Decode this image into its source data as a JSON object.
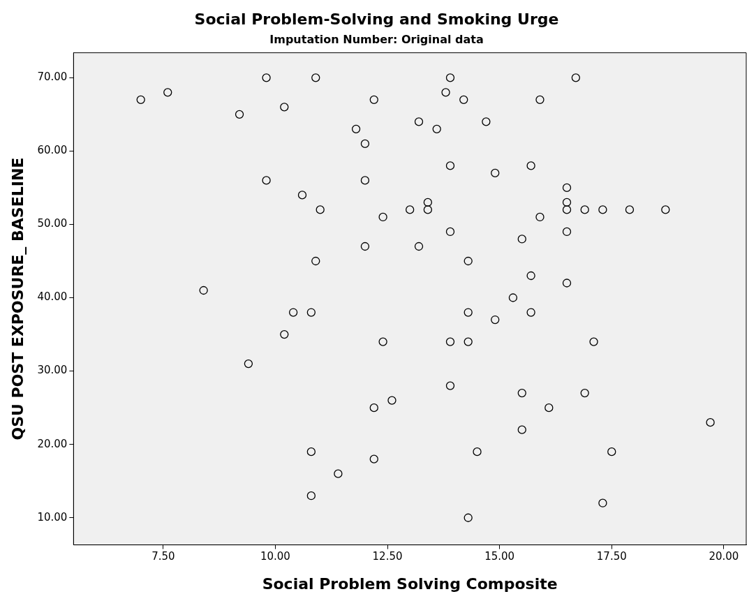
{
  "chart_data": {
    "type": "scatter",
    "title": "Social Problem-Solving and Smoking Urge",
    "subtitle": "Imputation Number: Original data",
    "xlabel": "Social Problem Solving Composite",
    "ylabel": "QSU POST EXPOSURE_ BASELINE",
    "marker": "circle",
    "legend": false,
    "grid": false,
    "xlim": [
      5.5,
      20.5
    ],
    "ylim": [
      6.3,
      73.4
    ],
    "xticks": [
      {
        "value": 7.5,
        "label": "7.50"
      },
      {
        "value": 10,
        "label": "10.00"
      },
      {
        "value": 12.5,
        "label": "12.50"
      },
      {
        "value": 15,
        "label": "15.00"
      },
      {
        "value": 17.5,
        "label": "17.50"
      },
      {
        "value": 20,
        "label": "20.00"
      }
    ],
    "yticks": [
      {
        "value": 10,
        "label": "10.00"
      },
      {
        "value": 20,
        "label": "20.00"
      },
      {
        "value": 30,
        "label": "30.00"
      },
      {
        "value": 40,
        "label": "40.00"
      },
      {
        "value": 50,
        "label": "50.00"
      },
      {
        "value": 60,
        "label": "60.00"
      },
      {
        "value": 70,
        "label": "70.00"
      }
    ],
    "series": [
      {
        "color": "#000000",
        "x": [
          7.0,
          7.6,
          9.2,
          9.8,
          9.8,
          10.2,
          10.6,
          11.0,
          10.9,
          10.9,
          8.4,
          10.4,
          10.8,
          10.2,
          9.4,
          10.8,
          10.8,
          11.4,
          12.2,
          12.2,
          12.6,
          12.4,
          12.4,
          12.0,
          12.0,
          12.0,
          11.8,
          12.2,
          13.0,
          13.4,
          13.4,
          13.2,
          13.2,
          13.6,
          13.8,
          13.9,
          14.2,
          13.9,
          13.9,
          13.9,
          13.9,
          14.3,
          14.3,
          14.3,
          14.3,
          14.5,
          14.7,
          14.9,
          14.9,
          15.3,
          15.5,
          15.5,
          15.5,
          15.7,
          15.7,
          15.7,
          15.9,
          15.9,
          16.1,
          16.7,
          16.5,
          16.5,
          16.5,
          16.5,
          16.5,
          16.9,
          16.9,
          17.1,
          17.3,
          17.3,
          17.5,
          17.9,
          18.7,
          19.7
        ],
        "values": [
          67,
          68,
          65,
          70,
          56,
          66,
          54,
          52,
          45,
          70,
          41,
          38,
          38,
          35,
          31,
          19,
          13,
          16,
          18,
          25,
          26,
          34,
          51,
          47,
          56,
          61,
          63,
          67,
          52,
          53,
          52,
          64,
          47,
          63,
          68,
          70,
          67,
          58,
          49,
          34,
          28,
          45,
          38,
          34,
          10,
          19,
          64,
          57,
          37,
          40,
          48,
          27,
          22,
          58,
          43,
          38,
          67,
          51,
          25,
          70,
          55,
          53,
          52,
          49,
          42,
          52,
          27,
          34,
          52,
          12,
          19,
          52,
          52,
          23
        ]
      }
    ]
  }
}
